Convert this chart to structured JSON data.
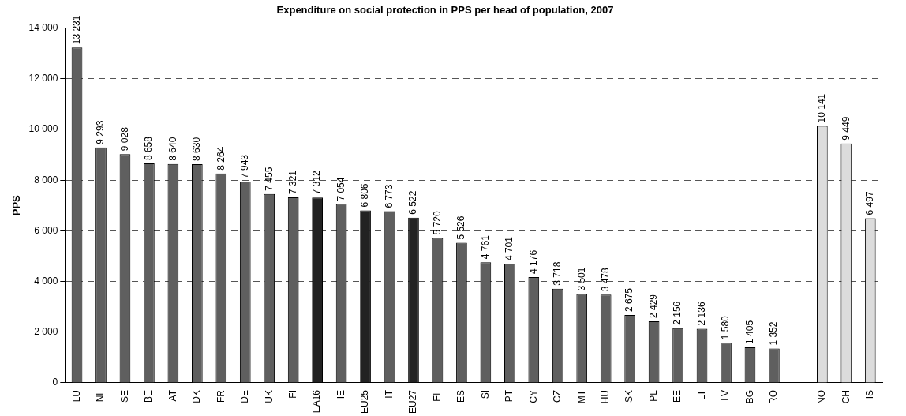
{
  "chart_data": {
    "type": "bar",
    "title": "Expenditure on social protection in PPS per head of population, 2007",
    "ylabel": "PPS",
    "categories": [
      "LU",
      "NL",
      "SE",
      "BE",
      "AT",
      "DK",
      "FR",
      "DE",
      "UK",
      "FI",
      "EA16",
      "IE",
      "EU25",
      "IT",
      "EU27",
      "EL",
      "ES",
      "SI",
      "PT",
      "CY",
      "CZ",
      "MT",
      "HU",
      "SK",
      "PL",
      "EE",
      "LT",
      "LV",
      "BG",
      "RO",
      null,
      "NO",
      "CH",
      "IS"
    ],
    "values": [
      13231,
      9293,
      9028,
      8658,
      8640,
      8630,
      8264,
      7943,
      7455,
      7321,
      7312,
      7054,
      6806,
      6773,
      6522,
      5720,
      5526,
      4761,
      4701,
      4176,
      3718,
      3501,
      3478,
      2675,
      2429,
      2156,
      2136,
      1580,
      1405,
      1352,
      null,
      10141,
      9449,
      6497
    ],
    "value_labels": [
      "13 231",
      "9 293",
      "9 028",
      "8 658",
      "8 640",
      "8 630",
      "8 264",
      "7 943",
      "7 455",
      "7 321",
      "7 312",
      "7 054",
      "6 806",
      "6 773",
      "6 522",
      "5 720",
      "5 526",
      "4 761",
      "4 701",
      "4 176",
      "3 718",
      "3 501",
      "3 478",
      "2 675",
      "2 429",
      "2 156",
      "2 136",
      "1 580",
      "1 405",
      "1 352",
      null,
      "10 141",
      "9 449",
      "6 497"
    ],
    "colors": [
      "#5f5f5f",
      "#5f5f5f",
      "#5f5f5f",
      "#5f5f5f",
      "#5f5f5f",
      "#5f5f5f",
      "#5f5f5f",
      "#5f5f5f",
      "#5f5f5f",
      "#5f5f5f",
      "#222222",
      "#5f5f5f",
      "#222222",
      "#5f5f5f",
      "#222222",
      "#5f5f5f",
      "#5f5f5f",
      "#5f5f5f",
      "#5f5f5f",
      "#5f5f5f",
      "#5f5f5f",
      "#5f5f5f",
      "#5f5f5f",
      "#5f5f5f",
      "#5f5f5f",
      "#5f5f5f",
      "#5f5f5f",
      "#5f5f5f",
      "#5f5f5f",
      "#5f5f5f",
      "#5f5f5f",
      "#dcdcdc",
      "#dcdcdc",
      "#dcdcdc"
    ],
    "ylim": [
      0,
      14000
    ],
    "yticks": [
      {
        "value": 0,
        "label": "0"
      },
      {
        "value": 2000,
        "label": "2 000"
      },
      {
        "value": 4000,
        "label": "4 000"
      },
      {
        "value": 6000,
        "label": "6 000"
      },
      {
        "value": 8000,
        "label": "8 000"
      },
      {
        "value": 10000,
        "label": "10 000"
      },
      {
        "value": 12000,
        "label": "12 000"
      },
      {
        "value": 14000,
        "label": "14 000"
      }
    ],
    "grid": "y",
    "legend": false
  }
}
